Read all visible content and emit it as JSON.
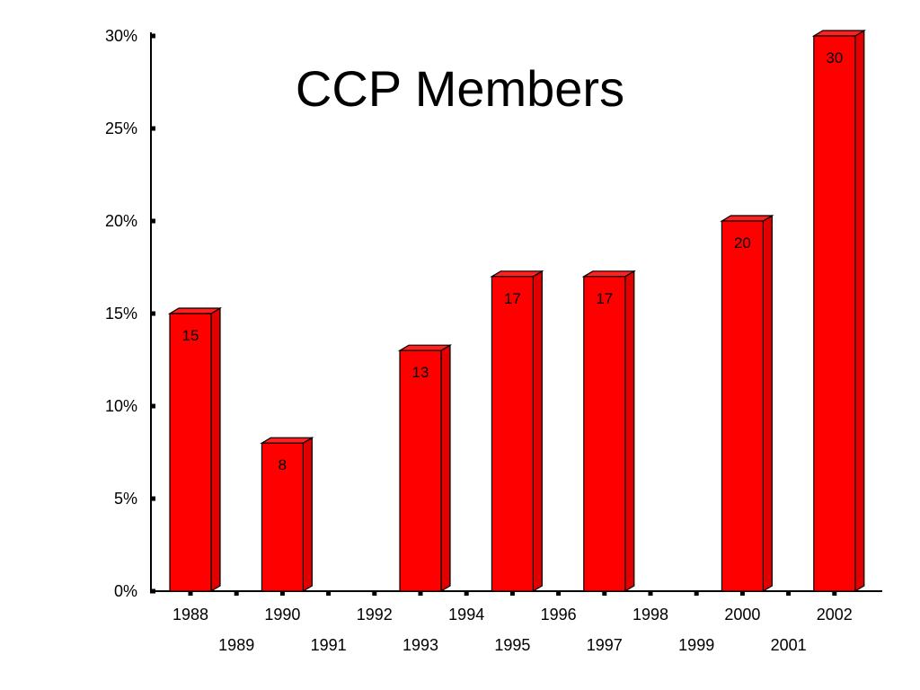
{
  "chart_data": {
    "type": "bar",
    "title": "CCP Members",
    "xlabel": "",
    "ylabel": "",
    "categories": [
      "1988",
      "1989",
      "1990",
      "1991",
      "1992",
      "1993",
      "1994",
      "1995",
      "1996",
      "1997",
      "1998",
      "1999",
      "2000",
      "2001",
      "2002"
    ],
    "values": [
      15,
      null,
      8,
      null,
      null,
      13,
      null,
      17,
      null,
      17,
      null,
      null,
      20,
      null,
      30
    ],
    "data_labels": [
      "15",
      "",
      "8",
      "",
      "",
      "13",
      "",
      "17",
      "",
      "17",
      "",
      "",
      "20",
      "",
      "30"
    ],
    "ylim": [
      0,
      30
    ],
    "yticks": [
      0,
      5,
      10,
      15,
      20,
      25,
      30
    ],
    "ytick_labels": [
      "0%",
      "5%",
      "10%",
      "15%",
      "20%",
      "25%",
      "30%"
    ],
    "grid": false,
    "bar_color": "#ff0000",
    "bar_style": "3d"
  }
}
